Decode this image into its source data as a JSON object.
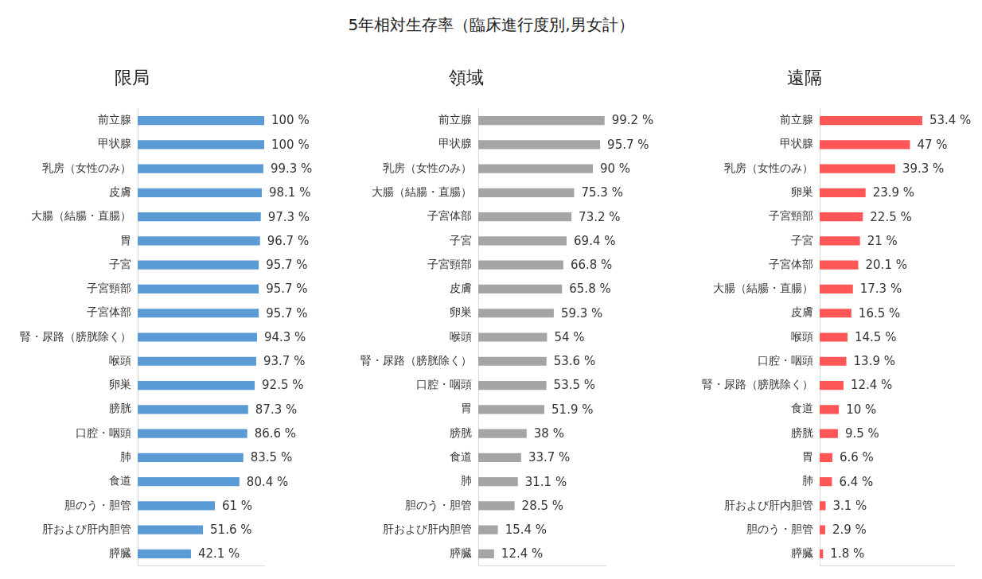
{
  "title": "5年相対生存率（臨床進行度別,男女計）",
  "chart_data": [
    {
      "type": "bar",
      "title": "限局",
      "orientation": "horizontal",
      "color": "#5b9bd5",
      "data_labels": true,
      "tick_labels": "y",
      "grid": false,
      "categories": [
        "前立腺",
        "甲状腺",
        "乳房（女性のみ）",
        "皮膚",
        "大腸（結腸・直腸）",
        "胃",
        "子宮",
        "子宮頸部",
        "子宮体部",
        "腎・尿路（膀胱除く）",
        "喉頭",
        "卵巣",
        "膀胱",
        "口腔・咽頭",
        "肺",
        "食道",
        "胆のう・胆管",
        "肝および肝内胆管",
        "膵臓"
      ],
      "values": [
        100,
        100,
        99.3,
        98.1,
        97.3,
        96.7,
        95.7,
        95.7,
        95.7,
        94.3,
        93.7,
        92.5,
        87.3,
        86.6,
        83.5,
        80.4,
        61,
        51.6,
        42.1
      ],
      "value_labels": [
        "100 %",
        "100 %",
        "99.3 %",
        "98.1 %",
        "97.3 %",
        "96.7 %",
        "95.7 %",
        "95.7 %",
        "95.7 %",
        "94.3 %",
        "93.7 %",
        "92.5 %",
        "87.3 %",
        "86.6 %",
        "83.5 %",
        "80.4 %",
        "61 %",
        "51.6 %",
        "42.1 %"
      ],
      "xlim": [
        0,
        100
      ]
    },
    {
      "type": "bar",
      "title": "領域",
      "orientation": "horizontal",
      "color": "#a5a5a5",
      "data_labels": true,
      "tick_labels": "y",
      "grid": false,
      "categories": [
        "前立腺",
        "甲状腺",
        "乳房（女性のみ）",
        "大腸（結腸・直腸）",
        "子宮体部",
        "子宮",
        "子宮頸部",
        "皮膚",
        "卵巣",
        "喉頭",
        "腎・尿路（膀胱除く）",
        "口腔・咽頭",
        "胃",
        "膀胱",
        "食道",
        "肺",
        "胆のう・胆管",
        "肝および肝内胆管",
        "膵臓"
      ],
      "values": [
        99.2,
        95.7,
        90,
        75.3,
        73.2,
        69.4,
        66.8,
        65.8,
        59.3,
        54,
        53.6,
        53.5,
        51.9,
        38,
        33.7,
        31.1,
        28.5,
        15.4,
        12.4
      ],
      "value_labels": [
        "99.2 %",
        "95.7 %",
        "90 %",
        "75.3 %",
        "73.2 %",
        "69.4 %",
        "66.8 %",
        "65.8 %",
        "59.3 %",
        "54 %",
        "53.6 %",
        "53.5 %",
        "51.9 %",
        "38 %",
        "33.7 %",
        "31.1 %",
        "28.5 %",
        "15.4 %",
        "12.4 %"
      ],
      "xlim": [
        0,
        100
      ]
    },
    {
      "type": "bar",
      "title": "遠隔",
      "orientation": "horizontal",
      "color": "#ff5757",
      "data_labels": true,
      "tick_labels": "y",
      "grid": false,
      "categories": [
        "前立腺",
        "甲状腺",
        "乳房（女性のみ）",
        "卵巣",
        "子宮頸部",
        "子宮",
        "子宮体部",
        "大腸（結腸・直腸）",
        "皮膚",
        "喉頭",
        "口腔・咽頭",
        "腎・尿路（膀胱除く）",
        "食道",
        "膀胱",
        "胃",
        "肺",
        "肝および肝内胆管",
        "胆のう・胆管",
        "膵臓"
      ],
      "values": [
        53.4,
        47,
        39.3,
        23.9,
        22.5,
        21,
        20.1,
        17.3,
        16.5,
        14.5,
        13.9,
        12.4,
        10,
        9.5,
        6.6,
        6.4,
        3.1,
        2.9,
        1.8
      ],
      "value_labels": [
        "53.4 %",
        "47 %",
        "39.3 %",
        "23.9 %",
        "22.5 %",
        "21 %",
        "20.1 %",
        "17.3 %",
        "16.5 %",
        "14.5 %",
        "13.9 %",
        "12.4 %",
        "10 %",
        "9.5 %",
        "6.6 %",
        "6.4 %",
        "3.1 %",
        "2.9 %",
        "1.8 %"
      ],
      "xlim": [
        0,
        70
      ]
    }
  ]
}
